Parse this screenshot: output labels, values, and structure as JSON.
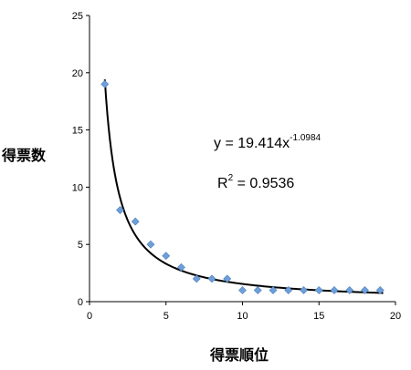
{
  "chart_data": {
    "type": "scatter",
    "title": "",
    "xlabel": "得票順位",
    "ylabel": "得票数",
    "xlim": [
      0,
      20
    ],
    "ylim": [
      0,
      25
    ],
    "xticks": [
      "0",
      "5",
      "10",
      "15",
      "20"
    ],
    "yticks": [
      "0",
      "5",
      "10",
      "15",
      "20",
      "25"
    ],
    "grid": false,
    "marker_color": "#6f9fd8",
    "trendline_color": "#000000",
    "series": [
      {
        "x": [
          1,
          2,
          3,
          4,
          5,
          6,
          7,
          8,
          9,
          10,
          11,
          12,
          13,
          14,
          15,
          16,
          17,
          18,
          19
        ],
        "y": [
          19,
          8,
          7,
          5,
          4,
          3,
          2,
          2,
          2,
          1,
          1,
          1,
          1,
          1,
          1,
          1,
          1,
          1,
          1
        ]
      }
    ],
    "trendline": {
      "type": "power",
      "coefficient": 19.414,
      "exponent": -1.0984,
      "x_range": [
        1,
        19.2
      ]
    },
    "annotations": {
      "equation_base": "y = 19.414x",
      "equation_exponent": "-1.0984",
      "r2_label": "R",
      "r2_exponent": "2",
      "r2_value": " = 0.9536"
    }
  }
}
